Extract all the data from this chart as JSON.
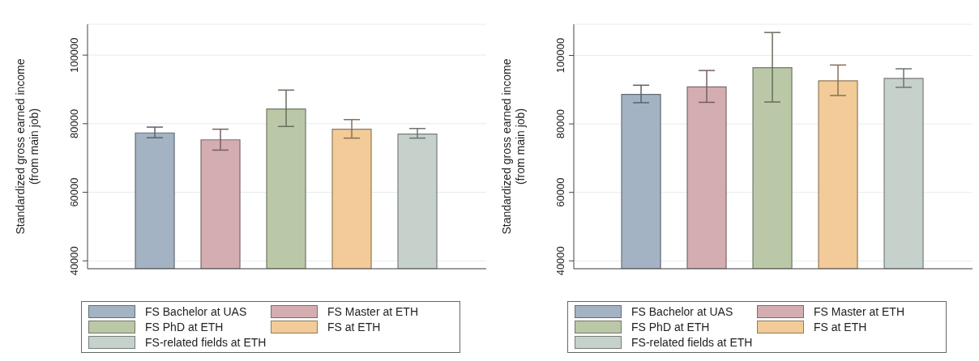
{
  "chart_data": [
    {
      "type": "bar",
      "ylabel": "Standardized gross earned income\n(from main job)",
      "categories": [
        null
      ],
      "ylim": [
        37700,
        109000
      ],
      "yticks": [
        40000,
        60000,
        80000,
        100000
      ],
      "grid": "y",
      "legend": "bottom",
      "tick_labels": "y",
      "series": [
        {
          "name": "FS Bachelor at UAS",
          "color": "#a3b3c4",
          "values": [
            77300
          ],
          "errors": [
            [
              75900,
              79000
            ]
          ]
        },
        {
          "name": "FS Master at ETH",
          "color": "#d4adb1",
          "values": [
            75300
          ],
          "errors": [
            [
              72300,
              78400
            ]
          ]
        },
        {
          "name": "FS PhD at ETH",
          "color": "#bac8a8",
          "values": [
            84300
          ],
          "errors": [
            [
              79200,
              89800
            ]
          ]
        },
        {
          "name": "FS at ETH",
          "color": "#f2cb98",
          "values": [
            78400
          ],
          "errors": [
            [
              75800,
              81200
            ]
          ]
        },
        {
          "name": "FS-related fields at ETH",
          "color": "#c6d1cc",
          "values": [
            77000
          ],
          "errors": [
            [
              75800,
              78600
            ]
          ]
        }
      ]
    },
    {
      "type": "bar",
      "ylabel": "Standardized gross earned income\n(from main job)",
      "categories": [
        null
      ],
      "ylim": [
        37700,
        109100
      ],
      "yticks": [
        40000,
        60000,
        80000,
        100000
      ],
      "grid": "y",
      "legend": "bottom",
      "tick_labels": "y",
      "series": [
        {
          "name": "FS Bachelor at UAS",
          "color": "#a3b3c4",
          "values": [
            88600
          ],
          "errors": [
            [
              86200,
              91300
            ]
          ]
        },
        {
          "name": "FS Master at ETH",
          "color": "#d4adb1",
          "values": [
            90800
          ],
          "errors": [
            [
              86300,
              95600
            ]
          ]
        },
        {
          "name": "FS PhD at ETH",
          "color": "#bac8a8",
          "values": [
            96400
          ],
          "errors": [
            [
              86400,
              106700
            ]
          ]
        },
        {
          "name": "FS at ETH",
          "color": "#f2cb98",
          "values": [
            92600
          ],
          "errors": [
            [
              88300,
              97200
            ]
          ]
        },
        {
          "name": "FS-related fields at ETH",
          "color": "#c6d1cc",
          "values": [
            93300
          ],
          "errors": [
            [
              90700,
              96100
            ]
          ]
        }
      ]
    }
  ]
}
